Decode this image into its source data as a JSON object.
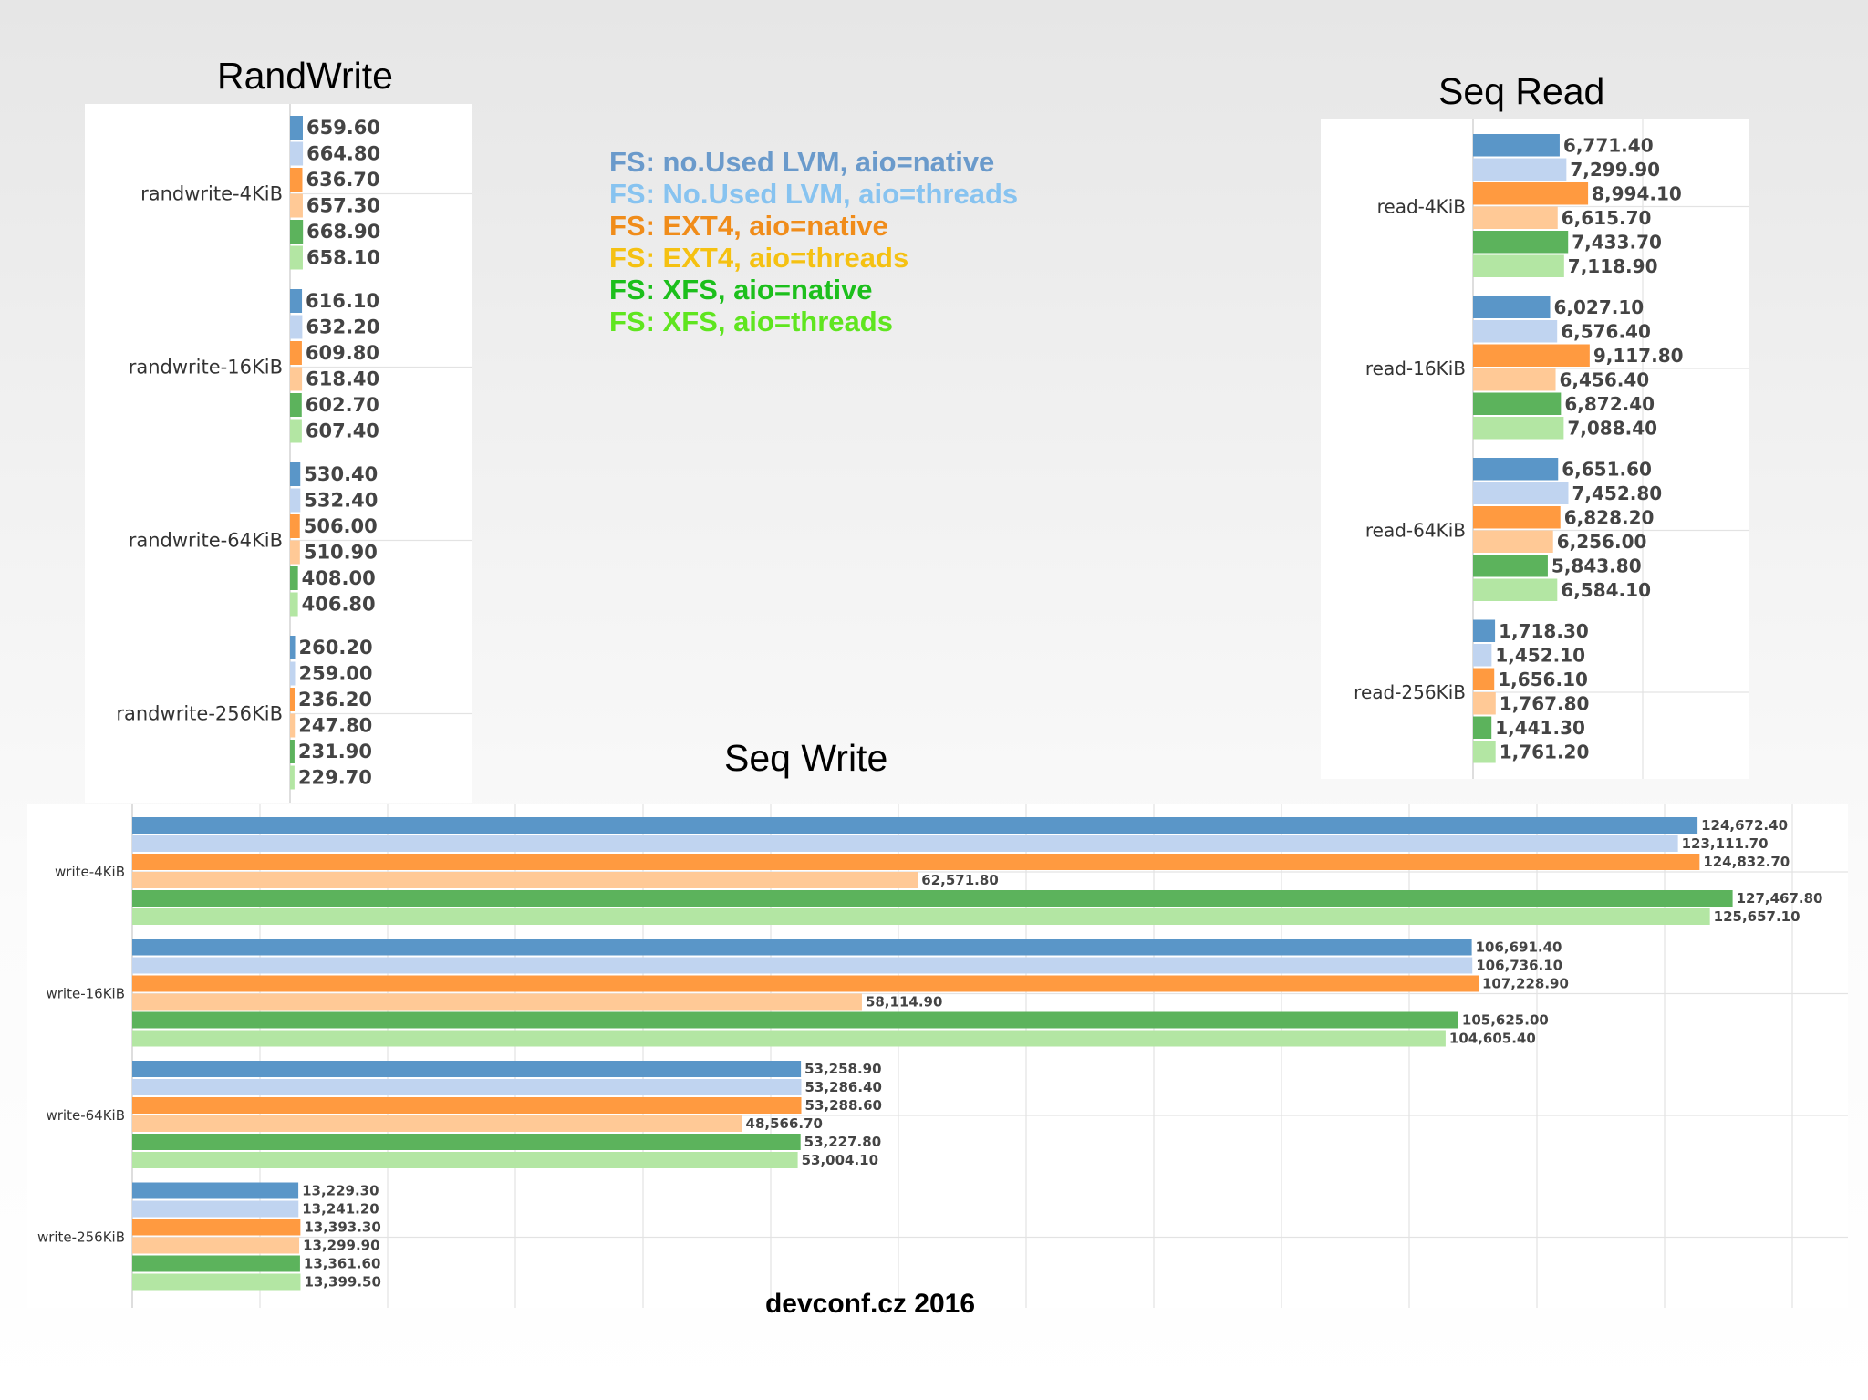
{
  "colors": {
    "series": [
      "#5a96c8",
      "#c0d4f0",
      "#ff9a40",
      "#ffc996",
      "#5cb35c",
      "#b3e6a3"
    ],
    "legend": [
      "#6a9acb",
      "#87c3f0",
      "#f08c1a",
      "#f5c112",
      "#1cbf1c",
      "#5fe51f"
    ]
  },
  "legend": {
    "items": [
      "FS:  no.Used LVM,  aio=native",
      "FS:  No.Used LVM,  aio=threads",
      "FS:  EXT4, aio=native",
      "FS:  EXT4, aio=threads",
      "FS:  XFS, aio=native",
      "FS:  XFS, aio=threads"
    ]
  },
  "footer": {
    "text": "devconf.cz 2016"
  },
  "chart_data": [
    {
      "type": "bar",
      "orientation": "horizontal",
      "title": "RandWrite",
      "categories": [
        "randwrite-4KiB",
        "randwrite-16KiB",
        "randwrite-64KiB",
        "randwrite-256KiB"
      ],
      "grid": true,
      "series": [
        {
          "values": [
            659.6,
            616.1,
            530.4,
            260.2
          ],
          "labels": [
            "659.60",
            "616.10",
            "530.40",
            "260.20"
          ]
        },
        {
          "values": [
            664.8,
            632.2,
            532.4,
            259.0
          ],
          "labels": [
            "664.80",
            "632.20",
            "532.40",
            "259.00"
          ]
        },
        {
          "values": [
            636.7,
            609.8,
            506.0,
            236.2
          ],
          "labels": [
            "636.70",
            "609.80",
            "506.00",
            "236.20"
          ]
        },
        {
          "values": [
            657.3,
            618.4,
            510.9,
            247.8
          ],
          "labels": [
            "657.30",
            "618.40",
            "510.90",
            "247.80"
          ]
        },
        {
          "values": [
            668.9,
            602.7,
            408.0,
            231.9
          ],
          "labels": [
            "668.90",
            "602.70",
            "408.00",
            "231.90"
          ]
        },
        {
          "values": [
            658.1,
            607.4,
            406.8,
            229.7
          ],
          "labels": [
            "658.10",
            "607.40",
            "406.80",
            "229.70"
          ]
        }
      ]
    },
    {
      "type": "bar",
      "orientation": "horizontal",
      "title": "Seq Read",
      "categories": [
        "read-4KiB",
        "read-16KiB",
        "read-64KiB",
        "read-256KiB"
      ],
      "grid": true,
      "series": [
        {
          "values": [
            6771.4,
            6027.1,
            6651.6,
            1718.3
          ],
          "labels": [
            "6,771.40",
            "6,027.10",
            "6,651.60",
            "1,718.30"
          ]
        },
        {
          "values": [
            7299.9,
            6576.4,
            7452.8,
            1452.1
          ],
          "labels": [
            "7,299.90",
            "6,576.40",
            "7,452.80",
            "1,452.10"
          ]
        },
        {
          "values": [
            8994.1,
            9117.8,
            6828.2,
            1656.1
          ],
          "labels": [
            "8,994.10",
            "9,117.80",
            "6,828.20",
            "1,656.10"
          ]
        },
        {
          "values": [
            6615.7,
            6456.4,
            6256.0,
            1767.8
          ],
          "labels": [
            "6,615.70",
            "6,456.40",
            "6,256.00",
            "1,767.80"
          ]
        },
        {
          "values": [
            7433.7,
            6872.4,
            5843.8,
            1441.3
          ],
          "labels": [
            "7,433.70",
            "6,872.40",
            "5,843.80",
            "1,441.30"
          ]
        },
        {
          "values": [
            7118.9,
            7088.4,
            6584.1,
            1761.2
          ],
          "labels": [
            "7,118.90",
            "7,088.40",
            "6,584.10",
            "1,761.20"
          ]
        }
      ]
    },
    {
      "type": "bar",
      "orientation": "horizontal",
      "title": "Seq Write",
      "categories": [
        "write-4KiB",
        "write-16KiB",
        "write-64KiB",
        "write-256KiB"
      ],
      "grid": true,
      "series": [
        {
          "values": [
            124672.4,
            106691.4,
            53258.9,
            13229.3
          ],
          "labels": [
            "124,672.40",
            "106,691.40",
            "53,258.90",
            "13,229.30"
          ]
        },
        {
          "values": [
            123111.7,
            106736.1,
            53286.4,
            13241.2
          ],
          "labels": [
            "123,111.70",
            "106,736.10",
            "53,286.40",
            "13,241.20"
          ]
        },
        {
          "values": [
            124832.7,
            107228.9,
            53288.6,
            13393.3
          ],
          "labels": [
            "124,832.70",
            "107,228.90",
            "53,288.60",
            "13,393.30"
          ]
        },
        {
          "values": [
            62571.8,
            58114.9,
            48566.7,
            13299.9
          ],
          "labels": [
            "62,571.80",
            "58,114.90",
            "48,566.70",
            "13,299.90"
          ]
        },
        {
          "values": [
            127467.8,
            105625.0,
            53227.8,
            13361.6
          ],
          "labels": [
            "127,467.80",
            "105,625.00",
            "53,227.80",
            "13,361.60"
          ]
        },
        {
          "values": [
            125657.1,
            104605.4,
            53004.1,
            13399.5
          ],
          "labels": [
            "125,657.10",
            "104,605.40",
            "53,004.10",
            "13,399.50"
          ]
        }
      ]
    }
  ]
}
